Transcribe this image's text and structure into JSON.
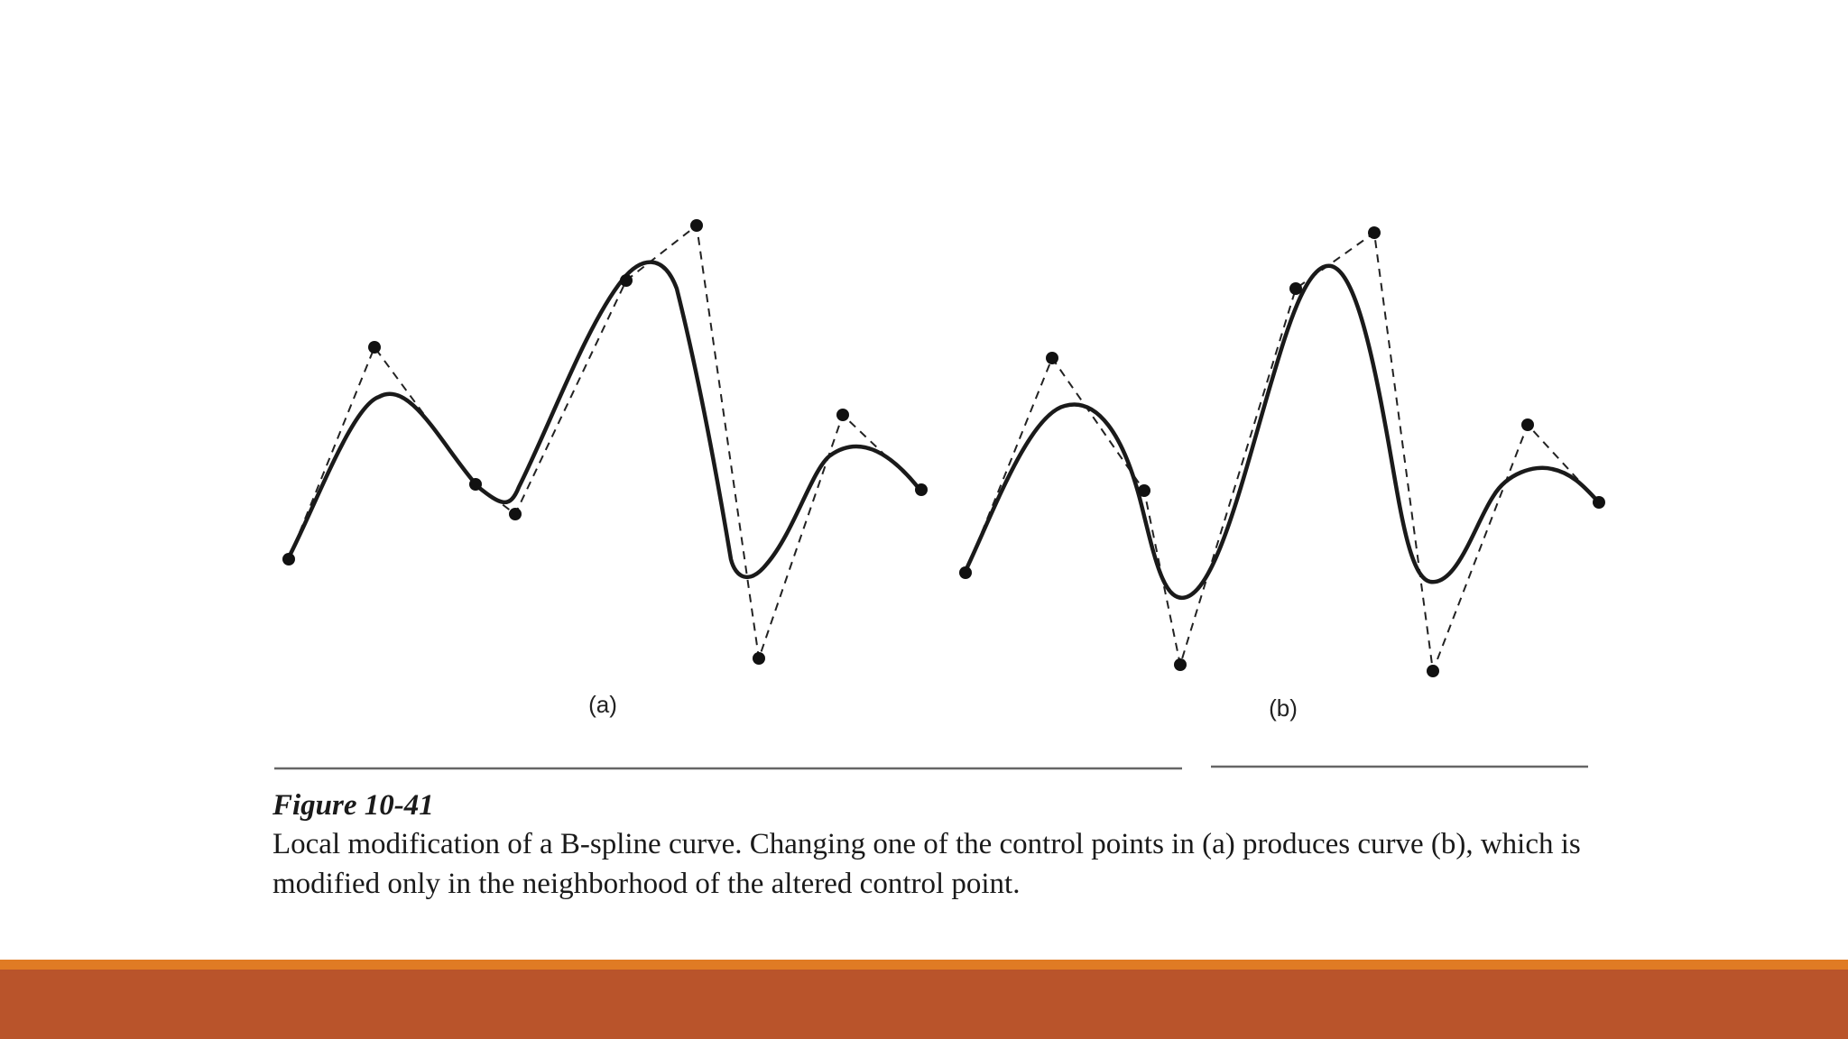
{
  "figure": {
    "number": "Figure 10-41",
    "caption": "Local modification of a B-spline curve. Changing one of the control points in (a) produces curve (b), which is modified only in the neighborhood of the altered control point.",
    "panels": [
      {
        "id": "a",
        "label": "(a)"
      },
      {
        "id": "b",
        "label": "(b)"
      }
    ]
  },
  "colors": {
    "footer_stripe": "#e07b24",
    "footer_bar": "#b9542b"
  }
}
